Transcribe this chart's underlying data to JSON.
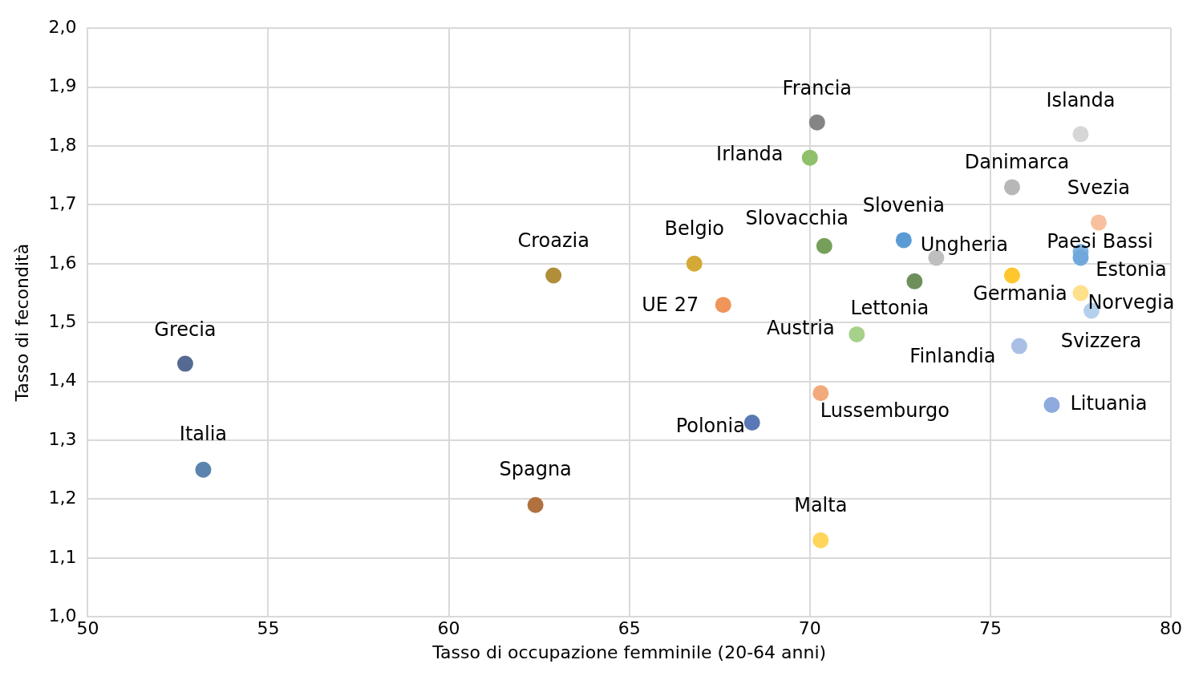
{
  "chart_data": {
    "type": "scatter",
    "xlabel": "Tasso di occupazione femminile (20-64 anni)",
    "ylabel": "Tasso di fecondità",
    "xlim": [
      50,
      80
    ],
    "xticks": [
      50,
      55,
      60,
      65,
      70,
      75,
      80
    ],
    "ylim": [
      1.0,
      2.0
    ],
    "yticks": [
      {
        "value": 1.0,
        "label": "1,0"
      },
      {
        "value": 1.1,
        "label": "1,1"
      },
      {
        "value": 1.2,
        "label": "1,2"
      },
      {
        "value": 1.3,
        "label": "1,3"
      },
      {
        "value": 1.4,
        "label": "1,4"
      },
      {
        "value": 1.5,
        "label": "1,5"
      },
      {
        "value": 1.6,
        "label": "1,6"
      },
      {
        "value": 1.7,
        "label": "1,7"
      },
      {
        "value": 1.8,
        "label": "1,8"
      },
      {
        "value": 1.9,
        "label": "1,9"
      },
      {
        "value": 2.0,
        "label": "2,0"
      }
    ],
    "grid": true,
    "legend": false,
    "marker": "circle",
    "series": [
      {
        "name": "Grecia",
        "color": "#546a93",
        "x": [
          52.7
        ],
        "values": [
          1.43
        ]
      },
      {
        "name": "Italia",
        "color": "#5a84ad",
        "x": [
          53.2
        ],
        "values": [
          1.25
        ]
      },
      {
        "name": "Spagna",
        "color": "#b0713f",
        "x": [
          62.4
        ],
        "values": [
          1.19
        ]
      },
      {
        "name": "Croazia",
        "color": "#b08e3a",
        "x": [
          62.9
        ],
        "values": [
          1.58
        ]
      },
      {
        "name": "Belgio",
        "color": "#d4a935",
        "x": [
          66.8
        ],
        "values": [
          1.6
        ]
      },
      {
        "name": "UE 27",
        "color": "#f0955a",
        "x": [
          67.6
        ],
        "values": [
          1.53
        ]
      },
      {
        "name": "Polonia",
        "color": "#5a78b5",
        "x": [
          68.4
        ],
        "values": [
          1.33
        ]
      },
      {
        "name": "Francia",
        "color": "#858585",
        "x": [
          70.2
        ],
        "values": [
          1.84
        ]
      },
      {
        "name": "Irlanda",
        "color": "#8fc06a",
        "x": [
          70.0
        ],
        "values": [
          1.78
        ]
      },
      {
        "name": "Slovacchia",
        "color": "#76a05a",
        "x": [
          70.4
        ],
        "values": [
          1.63
        ]
      },
      {
        "name": "Lussemburgo",
        "color": "#f2aa7c",
        "x": [
          70.3
        ],
        "values": [
          1.38
        ]
      },
      {
        "name": "Malta",
        "color": "#ffd55a",
        "x": [
          70.3
        ],
        "values": [
          1.13
        ]
      },
      {
        "name": "Austria",
        "color": "#a6d18a",
        "x": [
          71.3
        ],
        "values": [
          1.48
        ]
      },
      {
        "name": "Slovenia",
        "color": "#5b9bd5",
        "x": [
          72.6
        ],
        "values": [
          1.64
        ]
      },
      {
        "name": "Ungheria",
        "color": "#bfbfbf",
        "x": [
          73.5
        ],
        "values": [
          1.61
        ]
      },
      {
        "name": "Lettonia",
        "color": "#6e8f5a",
        "x": [
          72.9
        ],
        "values": [
          1.57
        ]
      },
      {
        "name": "Danimarca",
        "color": "#b7b7b7",
        "x": [
          75.6
        ],
        "values": [
          1.73
        ]
      },
      {
        "name": "Germania",
        "color": "#ffc62e",
        "x": [
          75.6
        ],
        "values": [
          1.58
        ]
      },
      {
        "name": "Finlandia",
        "color": "#a9bfe6",
        "x": [
          75.8
        ],
        "values": [
          1.46
        ]
      },
      {
        "name": "Islanda",
        "color": "#d6d6d6",
        "x": [
          77.5
        ],
        "values": [
          1.82
        ]
      },
      {
        "name": "Svezia",
        "color": "#f8c09e",
        "x": [
          78.0
        ],
        "values": [
          1.67
        ]
      },
      {
        "name": "Paesi Bassi",
        "color": "#7fb2e0",
        "x": [
          77.5
        ],
        "values": [
          1.62
        ]
      },
      {
        "name": "Estonia",
        "color": "#70a8dc",
        "x": [
          77.5
        ],
        "values": [
          1.61
        ]
      },
      {
        "name": "Norvegia",
        "color": "#ffe08a",
        "x": [
          77.5
        ],
        "values": [
          1.55
        ]
      },
      {
        "name": "Svizzera",
        "color": "#b4d0ec",
        "x": [
          77.8
        ],
        "values": [
          1.52
        ]
      },
      {
        "name": "Lituania",
        "color": "#8faadc",
        "x": [
          76.7
        ],
        "values": [
          1.36
        ]
      }
    ]
  }
}
